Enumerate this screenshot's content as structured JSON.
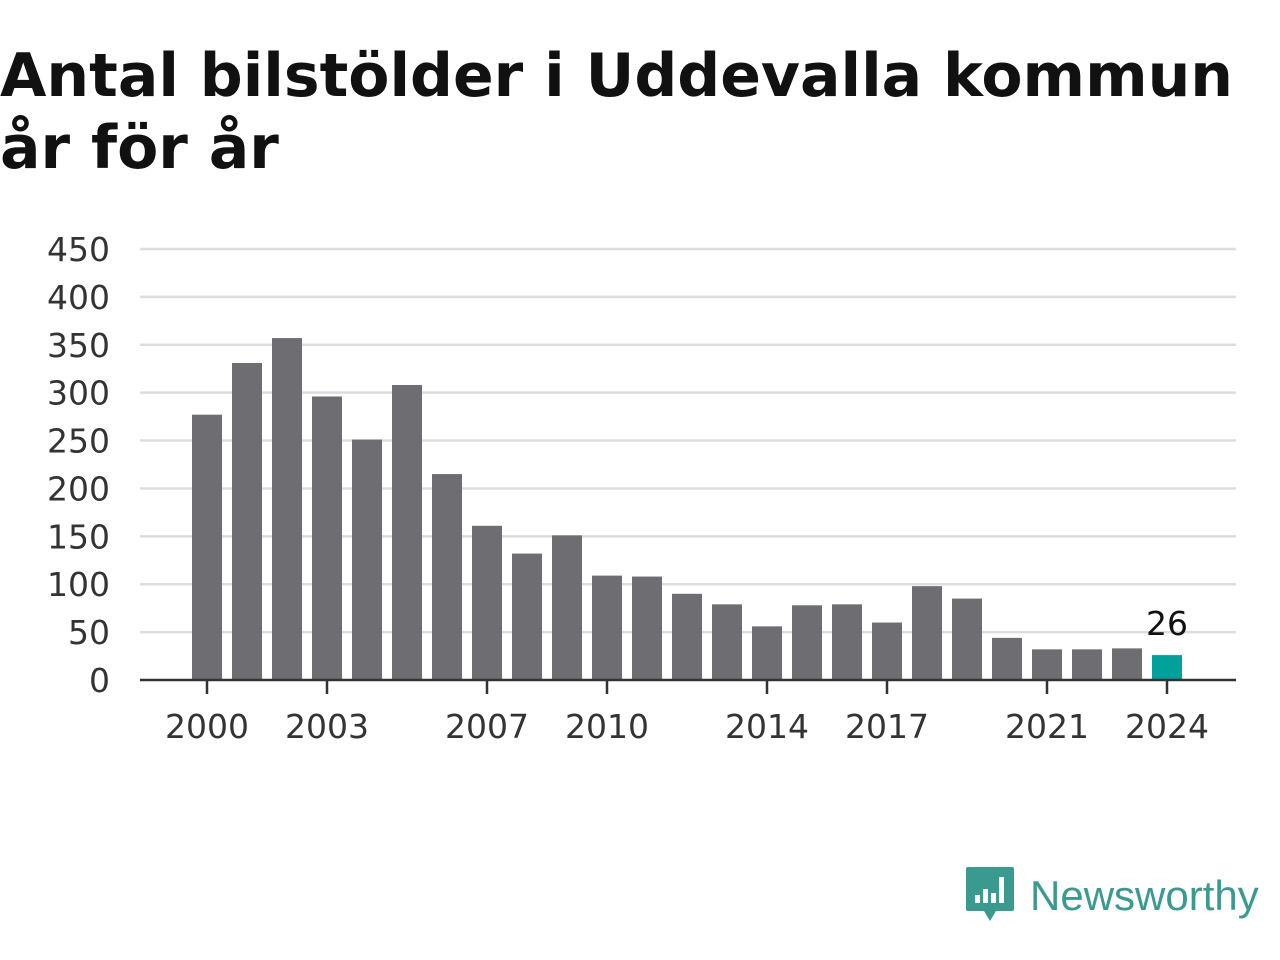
{
  "title": "Antal bilstölder i Uddevalla kommun år för år",
  "brand": {
    "name": "Newsworthy",
    "icon": "newsworthy-logo-icon"
  },
  "colors": {
    "bar": "#6e6d72",
    "highlight": "#00a19a",
    "grid": "#dddddd",
    "axis": "#333333",
    "brand": "#3a9a8f"
  },
  "chart_data": {
    "type": "bar",
    "categories": [
      "2000",
      "2001",
      "2002",
      "2003",
      "2004",
      "2005",
      "2006",
      "2007",
      "2008",
      "2009",
      "2010",
      "2011",
      "2012",
      "2013",
      "2014",
      "2015",
      "2016",
      "2017",
      "2018",
      "2019",
      "2020",
      "2021",
      "2022",
      "2023",
      "2024"
    ],
    "values": [
      277,
      331,
      357,
      296,
      251,
      308,
      215,
      161,
      132,
      151,
      109,
      108,
      90,
      79,
      56,
      78,
      79,
      60,
      98,
      85,
      44,
      32,
      32,
      33,
      26
    ],
    "highlight_index": 24,
    "value_label": "26",
    "x_tick_labels": [
      "2000",
      "2003",
      "2007",
      "2010",
      "2014",
      "2017",
      "2021",
      "2024"
    ],
    "y_ticks": [
      "0",
      "50",
      "100",
      "150",
      "200",
      "250",
      "300",
      "350",
      "400",
      "450"
    ],
    "ylim": [
      0,
      450
    ],
    "grid": true,
    "xlabel": "",
    "ylabel": ""
  }
}
